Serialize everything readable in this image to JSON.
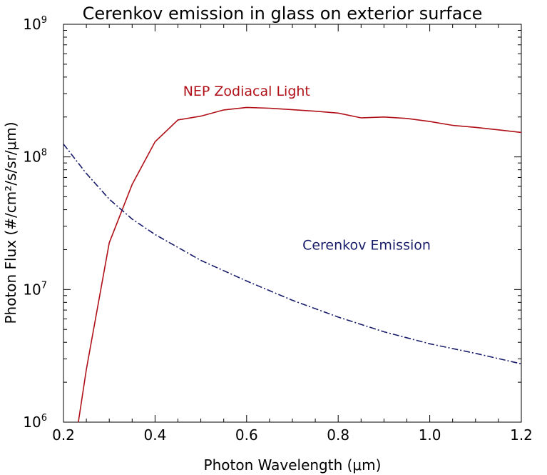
{
  "chart_data": {
    "type": "line",
    "title": "Cerenkov emission in glass on exterior surface",
    "xlabel": "Photon Wavelength (μm)",
    "ylabel": "Photon Flux (#/cm²/s/sr/μm)",
    "xlim": [
      0.2,
      1.2
    ],
    "ylim": [
      1000000,
      1000000000
    ],
    "yscale": "log",
    "grid": false,
    "x_ticks": [
      "0.2",
      "0.4",
      "0.6",
      "0.8",
      "1.0",
      "1.2"
    ],
    "x_tick_values": [
      0.2,
      0.4,
      0.6,
      0.8,
      1.0,
      1.2
    ],
    "y_ticks": [
      {
        "base": "10",
        "exp": "6",
        "value": 1000000
      },
      {
        "base": "10",
        "exp": "7",
        "value": 10000000
      },
      {
        "base": "10",
        "exp": "8",
        "value": 100000000
      },
      {
        "base": "10",
        "exp": "9",
        "value": 1000000000
      }
    ],
    "series": [
      {
        "name": "NEP Zodiacal Light",
        "color": "#b01018",
        "style": "solid",
        "x": [
          0.23,
          0.25,
          0.3,
          0.35,
          0.4,
          0.45,
          0.5,
          0.55,
          0.6,
          0.65,
          0.7,
          0.75,
          0.8,
          0.85,
          0.9,
          0.95,
          1.0,
          1.05,
          1.1,
          1.15,
          1.2
        ],
        "y": [
          880000,
          2500000,
          22500000,
          62000000,
          130000000,
          190000000,
          203000000,
          226000000,
          236000000,
          233000000,
          227000000,
          221000000,
          214000000,
          197000000,
          200000000,
          195000000,
          185000000,
          173000000,
          167000000,
          160000000,
          153000000
        ]
      },
      {
        "name": "Cerenkov Emission",
        "color": "#181c6a",
        "style": "dashdot",
        "x": [
          0.2,
          0.25,
          0.3,
          0.35,
          0.4,
          0.5,
          0.6,
          0.7,
          0.8,
          0.9,
          1.0,
          1.1,
          1.2
        ],
        "y": [
          125000000,
          75000000,
          48000000,
          34000000,
          26000000,
          16600000,
          11600000,
          8300000,
          6200000,
          4800000,
          3900000,
          3300000,
          2750000
        ]
      }
    ],
    "annotations": [
      {
        "text": "NEP Zodiacal Light",
        "color": "#b01018",
        "x": 0.6,
        "y": 290000000
      },
      {
        "text": "Cerenkov Emission",
        "color": "#181c6a",
        "x": 0.862,
        "y": 20000000
      }
    ]
  }
}
